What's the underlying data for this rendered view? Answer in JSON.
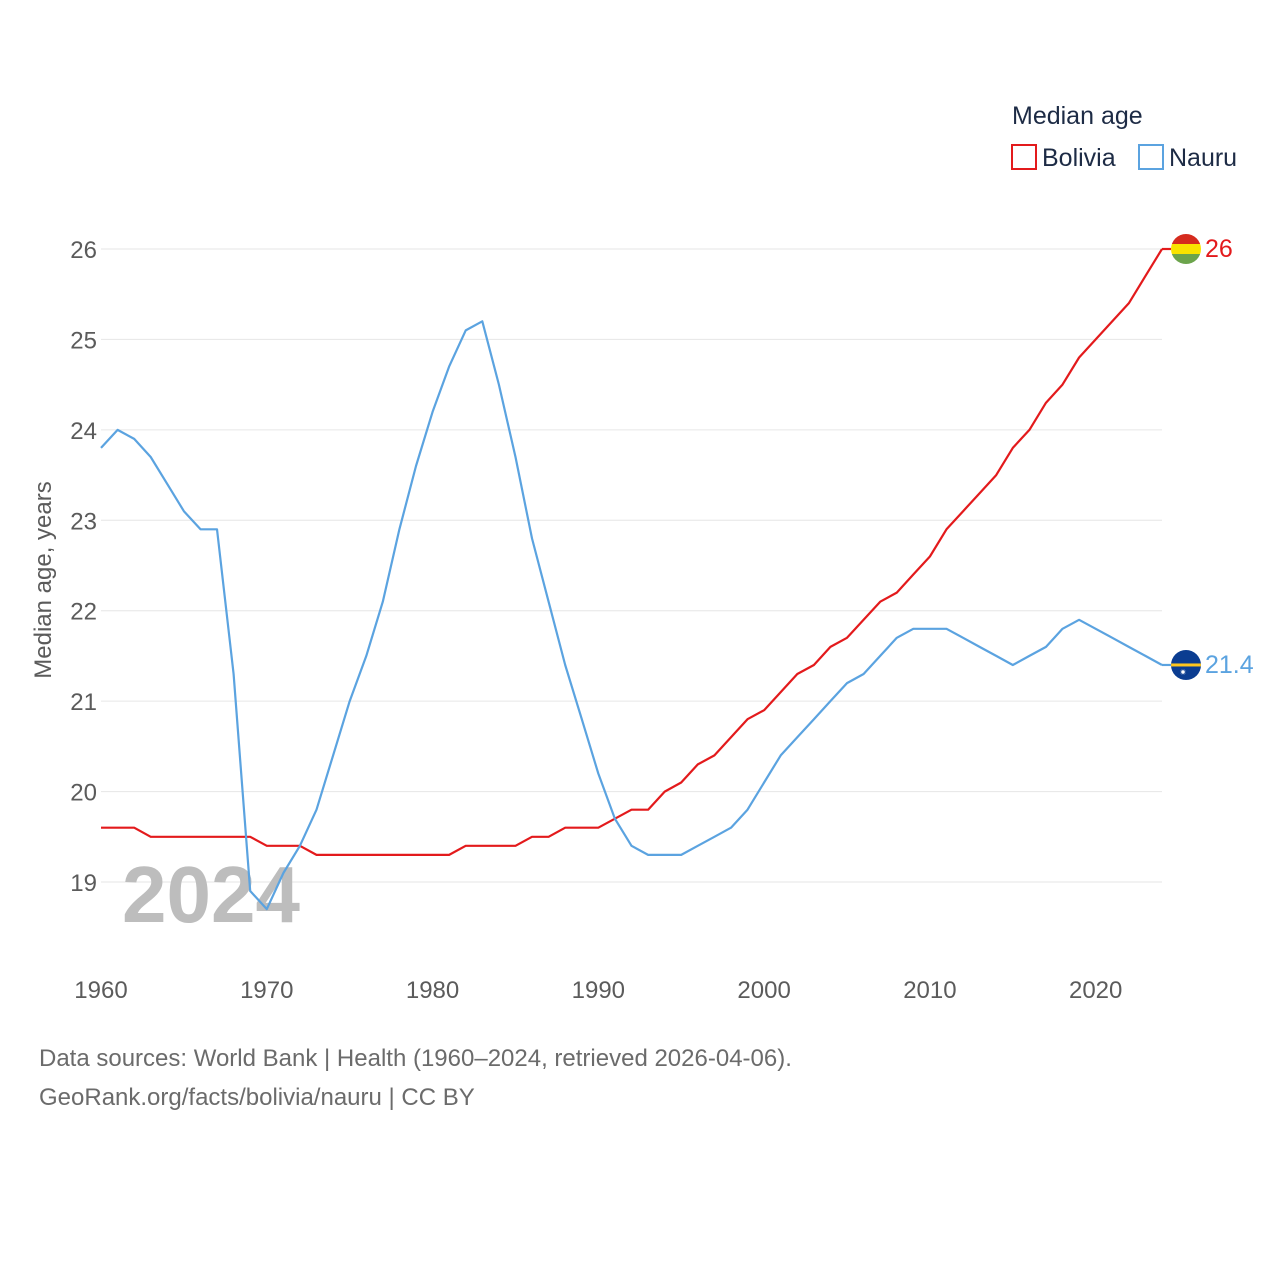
{
  "chart_data": {
    "type": "line",
    "ylabel": "Median age, years",
    "xlabel": "",
    "xlim": [
      1960,
      2024
    ],
    "ylim": [
      18.5,
      26.2
    ],
    "y_ticks": [
      19,
      20,
      21,
      22,
      23,
      24,
      25,
      26
    ],
    "x_ticks": [
      1960,
      1970,
      1980,
      1990,
      2000,
      2010,
      2020
    ],
    "legend": {
      "title": "Median age",
      "placement": "top-right"
    },
    "year_overlay": "2024",
    "x": [
      1960,
      1961,
      1962,
      1963,
      1964,
      1965,
      1966,
      1967,
      1968,
      1969,
      1970,
      1971,
      1972,
      1973,
      1974,
      1975,
      1976,
      1977,
      1978,
      1979,
      1980,
      1981,
      1982,
      1983,
      1984,
      1985,
      1986,
      1987,
      1988,
      1989,
      1990,
      1991,
      1992,
      1993,
      1994,
      1995,
      1996,
      1997,
      1998,
      1999,
      2000,
      2001,
      2002,
      2003,
      2004,
      2005,
      2006,
      2007,
      2008,
      2009,
      2010,
      2011,
      2012,
      2013,
      2014,
      2015,
      2016,
      2017,
      2018,
      2019,
      2020,
      2021,
      2022,
      2023,
      2024
    ],
    "series": [
      {
        "name": "Bolivia",
        "color": "#e31a1c",
        "end_label": "26",
        "flag": "bolivia-flag",
        "values": [
          19.6,
          19.6,
          19.6,
          19.5,
          19.5,
          19.5,
          19.5,
          19.5,
          19.5,
          19.5,
          19.4,
          19.4,
          19.4,
          19.3,
          19.3,
          19.3,
          19.3,
          19.3,
          19.3,
          19.3,
          19.3,
          19.3,
          19.4,
          19.4,
          19.4,
          19.4,
          19.5,
          19.5,
          19.6,
          19.6,
          19.6,
          19.7,
          19.8,
          19.8,
          20.0,
          20.1,
          20.3,
          20.4,
          20.6,
          20.8,
          20.9,
          21.1,
          21.3,
          21.4,
          21.6,
          21.7,
          21.9,
          22.1,
          22.2,
          22.4,
          22.6,
          22.9,
          23.1,
          23.3,
          23.5,
          23.8,
          24.0,
          24.3,
          24.5,
          24.8,
          25.0,
          25.2,
          25.4,
          25.7,
          26.0
        ]
      },
      {
        "name": "Nauru",
        "color": "#5ba3e0",
        "end_label": "21.4",
        "flag": "nauru-flag",
        "values": [
          23.8,
          24.0,
          23.9,
          23.7,
          23.4,
          23.1,
          22.9,
          22.9,
          21.3,
          18.9,
          18.7,
          19.1,
          19.4,
          19.8,
          20.4,
          21.0,
          21.5,
          22.1,
          22.9,
          23.6,
          24.2,
          24.7,
          25.1,
          25.2,
          24.5,
          23.7,
          22.8,
          22.1,
          21.4,
          20.8,
          20.2,
          19.7,
          19.4,
          19.3,
          19.3,
          19.3,
          19.4,
          19.5,
          19.6,
          19.8,
          20.1,
          20.4,
          20.6,
          20.8,
          21.0,
          21.2,
          21.3,
          21.5,
          21.7,
          21.8,
          21.8,
          21.8,
          21.7,
          21.6,
          21.5,
          21.4,
          21.5,
          21.6,
          21.8,
          21.9,
          21.8,
          21.7,
          21.6,
          21.5,
          21.4
        ]
      }
    ]
  },
  "footer": {
    "source_line_1": "Data sources: World Bank | Health (1960–2024, retrieved 2026-04-06).",
    "source_line_2": "GeoRank.org/facts/bolivia/nauru | CC BY"
  },
  "colors": {
    "grid": "#e6e6e6",
    "bolivia_flag_red": "#d52b1e",
    "bolivia_flag_yellow": "#f9e300",
    "bolivia_flag_green": "#6ca44c",
    "nauru_flag_blue": "#0b3d91",
    "nauru_flag_stripe": "#ffc61e"
  }
}
